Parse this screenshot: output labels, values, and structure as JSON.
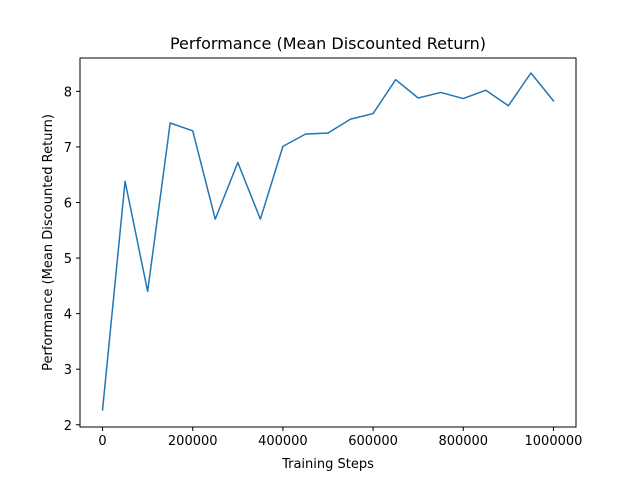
{
  "chart_data": {
    "type": "line",
    "title": "Performance (Mean Discounted Return)",
    "xlabel": "Training Steps",
    "ylabel": "Performance (Mean Discounted Return)",
    "xlim": [
      -50000,
      1050000
    ],
    "ylim": [
      1.96,
      8.6
    ],
    "xticks": [
      0,
      200000,
      400000,
      600000,
      800000,
      1000000
    ],
    "xtick_labels": [
      "0",
      "200000",
      "400000",
      "600000",
      "800000",
      "1000000"
    ],
    "yticks": [
      2,
      3,
      4,
      5,
      6,
      7,
      8
    ],
    "ytick_labels": [
      "2",
      "3",
      "4",
      "5",
      "6",
      "7",
      "8"
    ],
    "grid": false,
    "series": [
      {
        "color": "#1f77b4",
        "x": [
          0,
          50000,
          100000,
          150000,
          200000,
          250000,
          300000,
          350000,
          400000,
          450000,
          500000,
          550000,
          600000,
          650000,
          700000,
          750000,
          800000,
          850000,
          900000,
          950000,
          1000000
        ],
        "y": [
          2.27,
          6.38,
          4.4,
          7.43,
          7.29,
          5.7,
          6.72,
          5.7,
          7.01,
          7.23,
          7.25,
          7.5,
          7.6,
          8.21,
          7.88,
          7.98,
          7.87,
          8.02,
          7.74,
          8.33,
          7.83
        ]
      }
    ]
  }
}
